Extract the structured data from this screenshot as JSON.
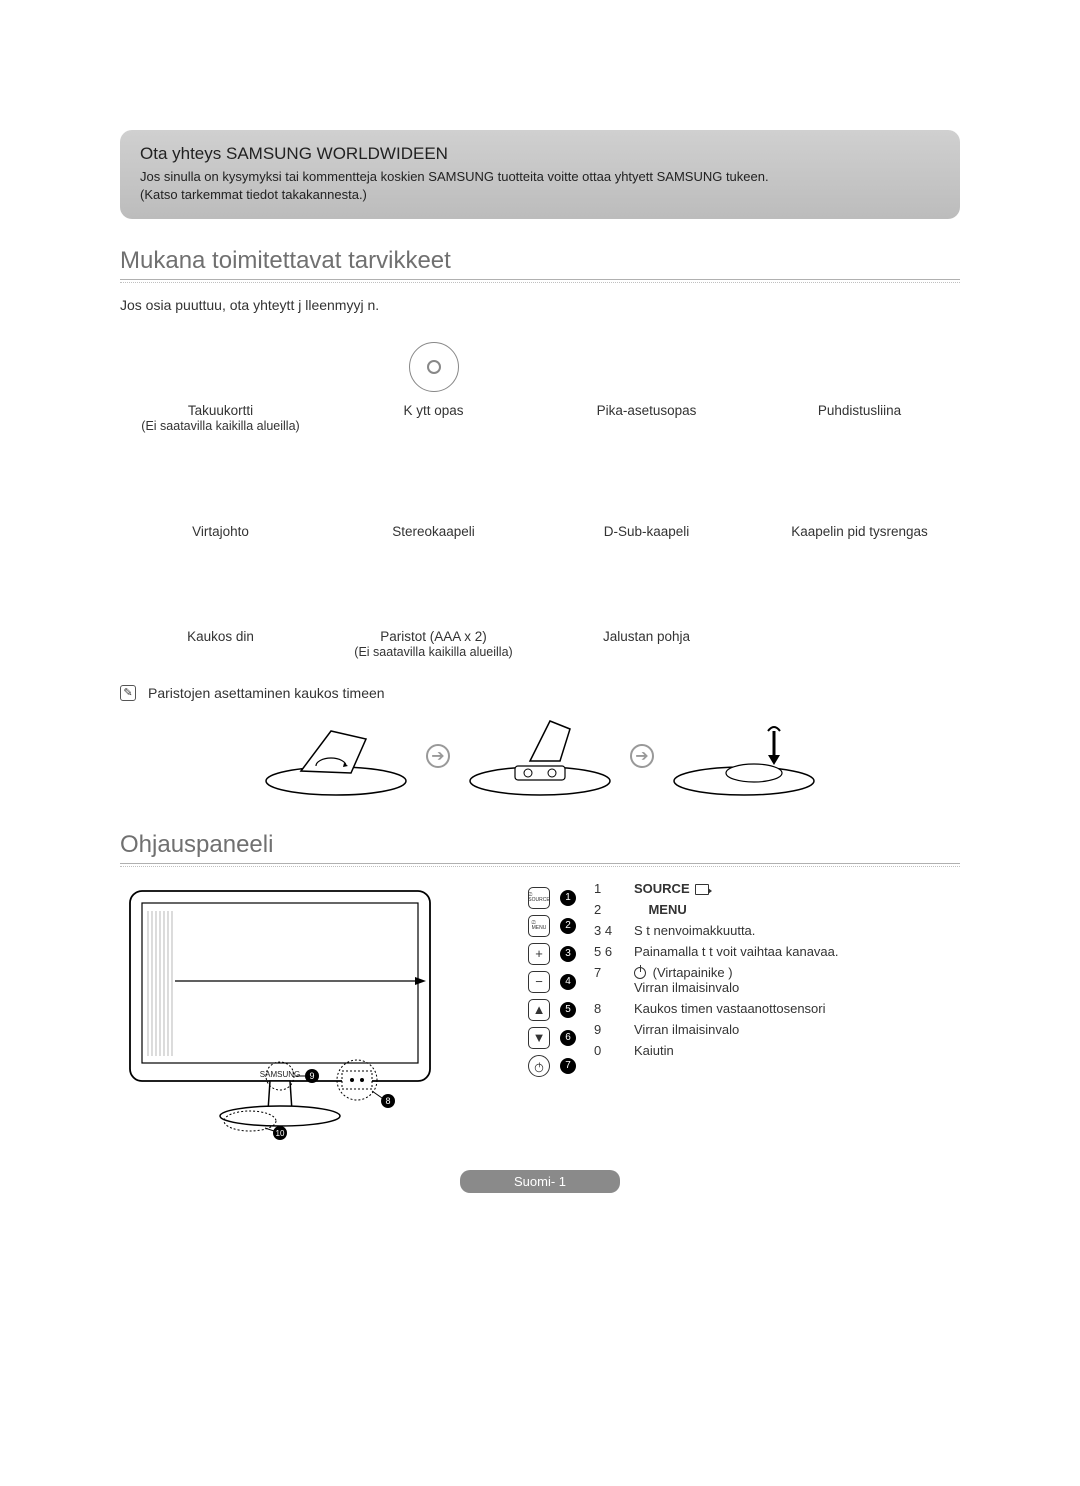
{
  "header": {
    "title": "Ota yhteys SAMSUNG WORLDWIDEEN",
    "body1": "Jos sinulla on kysymyksi  tai kommentteja koskien SAMSUNG tuotteita voitte ottaa yhtyett  SAMSUNG tukeen.",
    "body2": "(Katso tarkemmat tiedot takakannesta.)"
  },
  "section1": {
    "title": "Mukana toimitettavat tarvikkeet",
    "intro": "Jos osia puuttuu, ota yhteytt  j lleenmyyj  n.",
    "items": [
      {
        "label": "Takuukortti",
        "sub": "(Ei saatavilla kaikilla alueilla)"
      },
      {
        "label": "K ytt opas"
      },
      {
        "label": "Pika-asetusopas"
      },
      {
        "label": "Puhdistusliina"
      },
      {
        "label": "Virtajohto"
      },
      {
        "label": "Stereokaapeli"
      },
      {
        "label": "D-Sub-kaapeli"
      },
      {
        "label": "Kaapelin pid tysrengas"
      },
      {
        "label": "Kaukos  din"
      },
      {
        "label": "Paristot (AAA x 2)",
        "sub": "(Ei saatavilla kaikilla alueilla)"
      },
      {
        "label": "Jalustan pohja"
      },
      {
        "label": ""
      }
    ],
    "note": "Paristojen asettaminen kaukos  timeen"
  },
  "section2": {
    "title": "Ohjauspaneeli",
    "buttons": [
      {
        "glyph_type": "text",
        "glyph": "SOURCE",
        "badge": "1"
      },
      {
        "glyph_type": "text",
        "glyph": "MENU",
        "badge": "2"
      },
      {
        "glyph_type": "sym",
        "glyph": "+",
        "badge": "3"
      },
      {
        "glyph_type": "sym",
        "glyph": "−",
        "badge": "4"
      },
      {
        "glyph_type": "sym",
        "glyph": "▲",
        "badge": "5"
      },
      {
        "glyph_type": "sym",
        "glyph": "▼",
        "badge": "6"
      },
      {
        "glyph_type": "power",
        "glyph": "",
        "badge": "7"
      }
    ],
    "labels": [
      {
        "num": "1",
        "text": "SOURCE",
        "icon": "source"
      },
      {
        "num": "2",
        "text": "MENU",
        "indent": true
      },
      {
        "num": "3  4",
        "text": "S  t   nenvoimakkuutta."
      },
      {
        "num": "5  6",
        "text": "Painamalla t t  voit vaihtaa kanavaa."
      },
      {
        "num": "7",
        "text": "(Virtapainike )",
        "icon": "power",
        "sub": "Virran ilmaisinvalo"
      },
      {
        "num": "8",
        "text": "Kaukos  timen vastaanottosensori"
      },
      {
        "num": "9",
        "text": "Virran  ilmaisinvalo"
      },
      {
        "num": "0",
        "text": "Kaiutin"
      }
    ],
    "tv_badges": {
      "brand": "9",
      "sensor": "8",
      "speaker": "10"
    }
  },
  "footer": {
    "page": "Suomi- 1"
  },
  "colors": {
    "text": "#333333",
    "muted": "#707070",
    "rule": "#b0b0b0",
    "footer_bg": "#8a8a8a"
  }
}
